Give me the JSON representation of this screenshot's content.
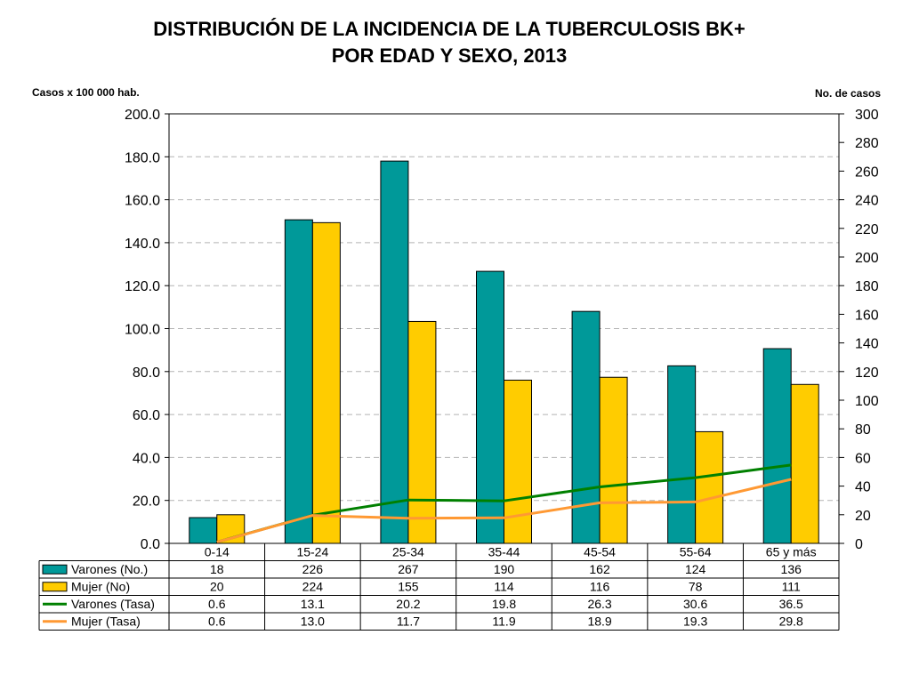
{
  "chart_data": {
    "type": "bar",
    "title_line1": "DISTRIBUCIÓN  DE LA INCIDENCIA DE LA TUBERCULOSIS BK+",
    "title_line2": "POR EDAD  Y  SEXO, 2013",
    "left_axis_label": "Casos  x 100 000 hab.",
    "right_axis_label": "No. de casos",
    "categories": [
      "0-14",
      "15-24",
      "25-34",
      "35-44",
      "45-54",
      "55-64",
      "65 y más"
    ],
    "left_axis": {
      "min": 0,
      "max": 200,
      "step": 20,
      "tick_labels": [
        "0.0",
        "20.0",
        "40.0",
        "60.0",
        "80.0",
        "100.0",
        "120.0",
        "140.0",
        "160.0",
        "180.0",
        "200.0"
      ]
    },
    "right_axis": {
      "min": 0,
      "max": 300,
      "step": 20,
      "tick_labels": [
        "0",
        "20",
        "40",
        "60",
        "80",
        "100",
        "120",
        "140",
        "160",
        "180",
        "200",
        "220",
        "240",
        "260",
        "280",
        "300"
      ]
    },
    "grid": true,
    "legend": "data-table-below",
    "series": [
      {
        "name": "Varones (No.)",
        "kind": "bar",
        "axis": "right",
        "color": "#009999",
        "values": [
          18,
          226,
          267,
          190,
          162,
          124,
          136
        ],
        "labels": [
          "18",
          "226",
          "267",
          "190",
          "162",
          "124",
          "136"
        ]
      },
      {
        "name": "Mujer (No)",
        "kind": "bar",
        "axis": "right",
        "color": "#ffcc00",
        "values": [
          20,
          224,
          155,
          114,
          116,
          78,
          111
        ],
        "labels": [
          "20",
          "224",
          "155",
          "114",
          "116",
          "78",
          "111"
        ]
      },
      {
        "name": "Varones (Tasa)",
        "kind": "line",
        "axis": "left",
        "color": "#008000",
        "values": [
          0.6,
          13.1,
          20.2,
          19.8,
          26.3,
          30.6,
          36.5
        ],
        "labels": [
          "0.6",
          "13.1",
          "20.2",
          "19.8",
          "26.3",
          "30.6",
          "36.5"
        ]
      },
      {
        "name": "Mujer (Tasa)",
        "kind": "line",
        "axis": "left",
        "color": "#ff9933",
        "values": [
          0.6,
          13.0,
          11.7,
          11.9,
          18.9,
          19.3,
          29.8
        ],
        "labels": [
          "0.6",
          "13.0",
          "11.7",
          "11.9",
          "18.9",
          "19.3",
          "29.8"
        ]
      }
    ]
  }
}
